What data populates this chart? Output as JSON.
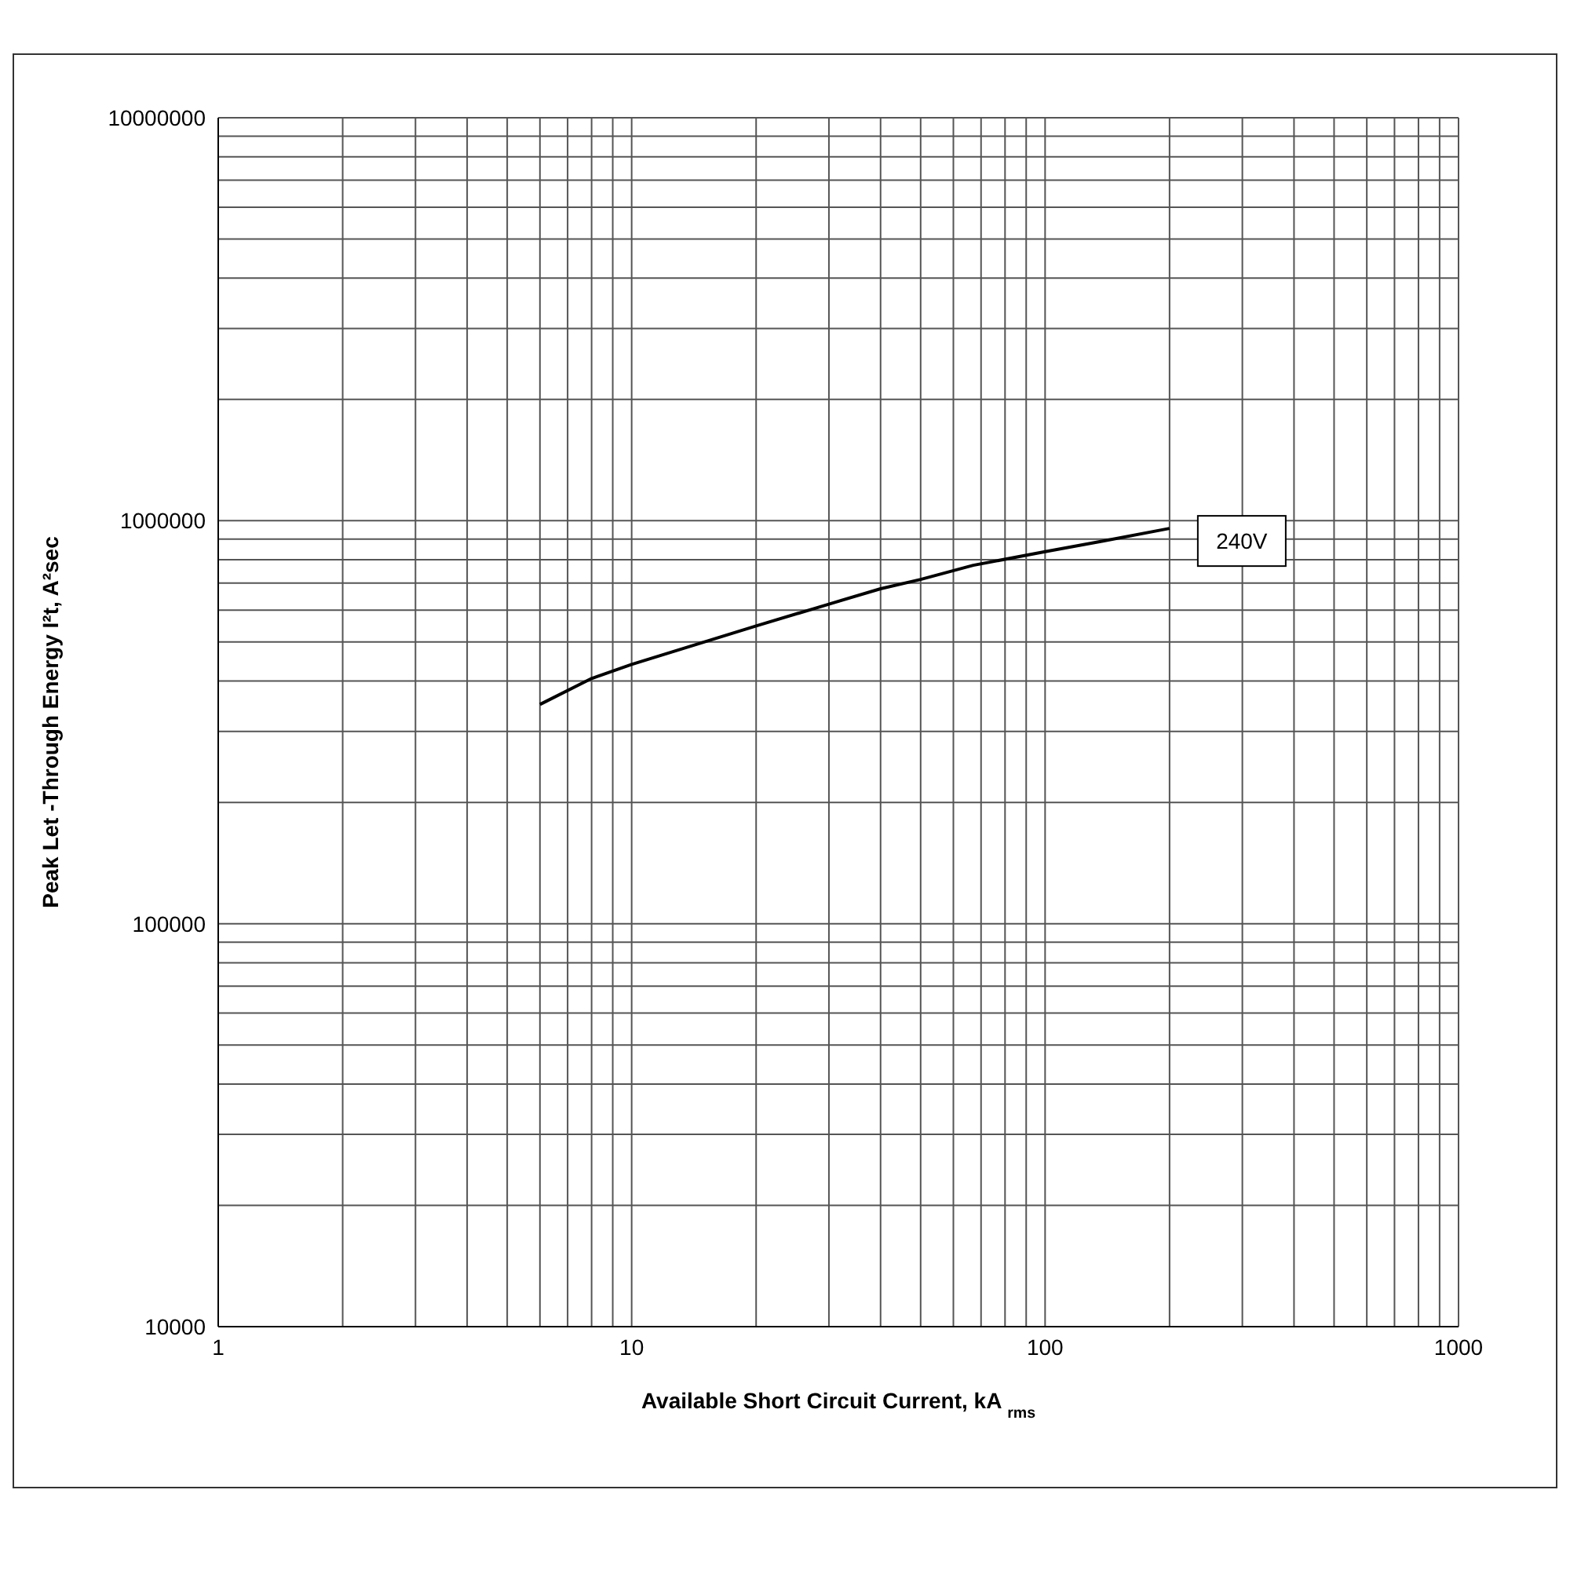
{
  "chart_data": {
    "type": "line",
    "xlabel": "Available Short Circuit Current, kA $_{rms}$",
    "ylabel": "Peak Let -Through Energy I²t, A²sec",
    "x": [
      6,
      8,
      10,
      20,
      30,
      40,
      50,
      67,
      100,
      138,
      200
    ],
    "series": [
      {
        "name": "240V",
        "color": "#000000",
        "values": [
          350000,
          406000,
          440000,
          548000,
          621000,
          678000,
          715000,
          775000,
          838000,
          890000,
          957000
        ]
      }
    ],
    "log": "xy",
    "xlim": [
      1,
      1000
    ],
    "ylim": [
      10000,
      10000000
    ],
    "xticks": [
      1,
      {
        "value": 2,
        "label": null
      },
      {
        "value": 3,
        "label": null
      },
      {
        "value": 4,
        "label": null
      },
      {
        "value": 5,
        "label": null
      },
      {
        "value": 6,
        "label": null
      },
      {
        "value": 7,
        "label": null
      },
      {
        "value": 8,
        "label": null
      },
      {
        "value": 9,
        "label": null
      },
      10,
      {
        "value": 20,
        "label": null
      },
      {
        "value": 30,
        "label": null
      },
      {
        "value": 40,
        "label": null
      },
      {
        "value": 50,
        "label": null
      },
      {
        "value": 60,
        "label": null
      },
      {
        "value": 70,
        "label": null
      },
      {
        "value": 80,
        "label": null
      },
      {
        "value": 90,
        "label": null
      },
      100,
      {
        "value": 200,
        "label": null
      },
      {
        "value": 300,
        "label": null
      },
      {
        "value": 400,
        "label": null
      },
      {
        "value": 500,
        "label": null
      },
      {
        "value": 600,
        "label": null
      },
      {
        "value": 700,
        "label": null
      },
      {
        "value": 800,
        "label": null
      },
      {
        "value": 900,
        "label": null
      },
      1000
    ],
    "yticks": [
      10000,
      {
        "value": 20000,
        "label": null
      },
      {
        "value": 30000,
        "label": null
      },
      {
        "value": 40000,
        "label": null
      },
      {
        "value": 50000,
        "label": null
      },
      {
        "value": 60000,
        "label": null
      },
      {
        "value": 70000,
        "label": null
      },
      {
        "value": 80000,
        "label": null
      },
      {
        "value": 90000,
        "label": null
      },
      100000,
      {
        "value": 200000,
        "label": null
      },
      {
        "value": 300000,
        "label": null
      },
      {
        "value": 400000,
        "label": null
      },
      {
        "value": 500000,
        "label": null
      },
      {
        "value": 600000,
        "label": null
      },
      {
        "value": 700000,
        "label": null
      },
      {
        "value": 800000,
        "label": null
      },
      {
        "value": 900000,
        "label": null
      },
      1000000,
      {
        "value": 2000000,
        "label": null
      },
      {
        "value": 3000000,
        "label": null
      },
      {
        "value": 4000000,
        "label": null
      },
      {
        "value": 5000000,
        "label": null
      },
      {
        "value": 6000000,
        "label": null
      },
      {
        "value": 7000000,
        "label": null
      },
      {
        "value": 8000000,
        "label": null
      },
      {
        "value": 9000000,
        "label": null
      },
      10000000
    ],
    "grid": true,
    "legend": false,
    "marker": "none",
    "line_style": "solid"
  }
}
